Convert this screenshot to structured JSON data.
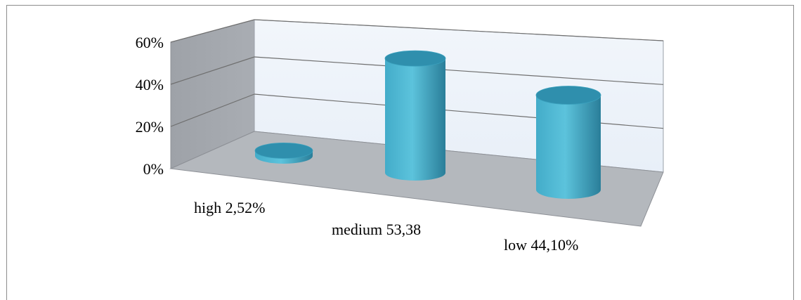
{
  "chart_data": {
    "type": "bar",
    "style": "3d-cylinder",
    "categories": [
      "high 2,52%",
      "medium 53,38",
      "low 44,10%"
    ],
    "values": [
      2.52,
      53.38,
      44.1
    ],
    "yticks": [
      "0%",
      "20%",
      "40%",
      "60%"
    ],
    "ylim": [
      0,
      60
    ],
    "grid": true,
    "legend": "none",
    "colors": {
      "bar_light": "#5cc3dc",
      "bar_mid": "#43acc9",
      "bar_dark": "#2a7e99",
      "bar_top": "#2f8fad",
      "wall": "#e8eff8",
      "side_wall": "#a9adb3",
      "floor": "#b4b8bd",
      "gridline": "#6f6f6f"
    }
  }
}
